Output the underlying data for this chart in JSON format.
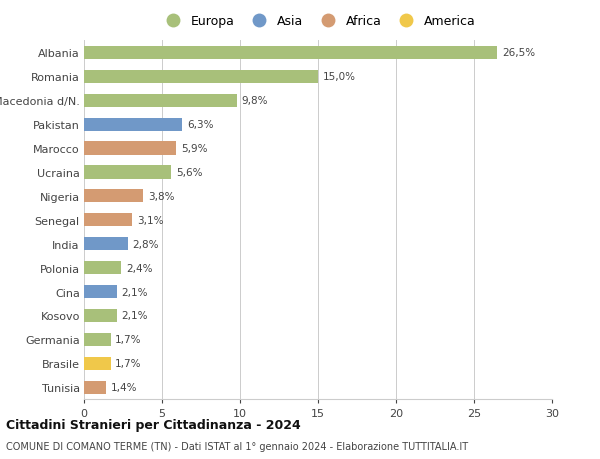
{
  "categories": [
    "Albania",
    "Romania",
    "Macedonia d/N.",
    "Pakistan",
    "Marocco",
    "Ucraina",
    "Nigeria",
    "Senegal",
    "India",
    "Polonia",
    "Cina",
    "Kosovo",
    "Germania",
    "Brasile",
    "Tunisia"
  ],
  "values": [
    26.5,
    15.0,
    9.8,
    6.3,
    5.9,
    5.6,
    3.8,
    3.1,
    2.8,
    2.4,
    2.1,
    2.1,
    1.7,
    1.7,
    1.4
  ],
  "labels": [
    "26,5%",
    "15,0%",
    "9,8%",
    "6,3%",
    "5,9%",
    "5,6%",
    "3,8%",
    "3,1%",
    "2,8%",
    "2,4%",
    "2,1%",
    "2,1%",
    "1,7%",
    "1,7%",
    "1,4%"
  ],
  "continents": [
    "Europa",
    "Europa",
    "Europa",
    "Asia",
    "Africa",
    "Europa",
    "Africa",
    "Africa",
    "Asia",
    "Europa",
    "Asia",
    "Europa",
    "Europa",
    "America",
    "Africa"
  ],
  "colors": {
    "Europa": "#a8c07a",
    "Asia": "#7098c8",
    "Africa": "#d49b72",
    "America": "#f0c84a"
  },
  "legend_order": [
    "Europa",
    "Asia",
    "Africa",
    "America"
  ],
  "xlim": [
    0,
    30
  ],
  "xticks": [
    0,
    5,
    10,
    15,
    20,
    25,
    30
  ],
  "title": "Cittadini Stranieri per Cittadinanza - 2024",
  "subtitle": "COMUNE DI COMANO TERME (TN) - Dati ISTAT al 1° gennaio 2024 - Elaborazione TUTTITALIA.IT",
  "background_color": "#ffffff",
  "grid_color": "#cccccc",
  "bar_height": 0.55
}
